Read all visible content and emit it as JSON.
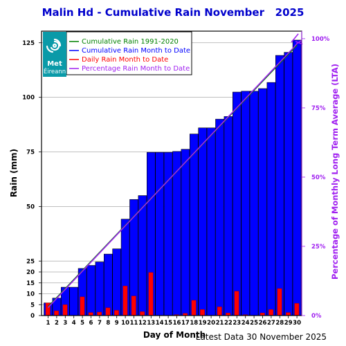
{
  "title": "Malin Hd - Cumulative Rain November   2025",
  "footer": "Latest Data 30 November 2025",
  "logo": {
    "icon": "met-eireann-swirl-logo",
    "text1": "Met",
    "text2": "Éireann"
  },
  "colors": {
    "cumulative": "#0000ff",
    "daily": "#ff0000",
    "lta": "#008000",
    "percent": "#a020f0"
  },
  "chart_data": {
    "type": "bar",
    "title": "Malin Hd - Cumulative Rain November   2025",
    "xlabel": "Day of Month",
    "ylabel": "Rain (mm)",
    "y2label": "Percentage of Monthly Long Term Average (LTA)",
    "days": [
      1,
      2,
      3,
      4,
      5,
      6,
      7,
      8,
      9,
      10,
      11,
      12,
      13,
      14,
      15,
      16,
      17,
      18,
      19,
      20,
      21,
      22,
      23,
      24,
      25,
      26,
      27,
      28,
      29,
      30
    ],
    "y_ticks": [
      "0",
      "5",
      "10",
      "15",
      "20",
      "25",
      "50",
      "75",
      "100",
      "125"
    ],
    "y2_ticks": [
      "0%",
      "25%",
      "50%",
      "75%",
      "100%"
    ],
    "legend": [
      {
        "label": "Cumulative Rain 1991-2020",
        "color": "#008000"
      },
      {
        "label": "Cumulative Rain Month to Date",
        "color": "#0000ff"
      },
      {
        "label": "Daily Rain Month to Date",
        "color": "#ff0000"
      },
      {
        "label": "Percentage Rain Month to Date",
        "color": "#a020f0"
      }
    ],
    "series": [
      {
        "name": "Cumulative Rain Month to Date",
        "values": [
          5.8,
          8.0,
          13.0,
          13.0,
          21.6,
          23.0,
          24.6,
          28.2,
          30.6,
          44.2,
          53.2,
          55.0,
          74.8,
          74.8,
          74.8,
          75.2,
          76.2,
          83.2,
          86.0,
          86.0,
          90.0,
          91.2,
          102.4,
          102.8,
          102.8,
          104.0,
          106.8,
          119.2,
          120.6,
          126.2
        ]
      },
      {
        "name": "Daily Rain Month to Date",
        "values": [
          5.8,
          2.2,
          5.0,
          0.0,
          8.6,
          1.4,
          1.6,
          3.6,
          2.4,
          13.6,
          9.0,
          1.8,
          19.8,
          0.0,
          0.0,
          0.4,
          1.0,
          7.0,
          2.8,
          0.0,
          4.0,
          1.2,
          11.2,
          0.4,
          0.0,
          1.2,
          2.8,
          12.4,
          1.4,
          5.6
        ]
      },
      {
        "name": "Cumulative Rain 1991-2020",
        "start": 4.0,
        "end": 124.0
      }
    ],
    "percent_end": "100%"
  }
}
